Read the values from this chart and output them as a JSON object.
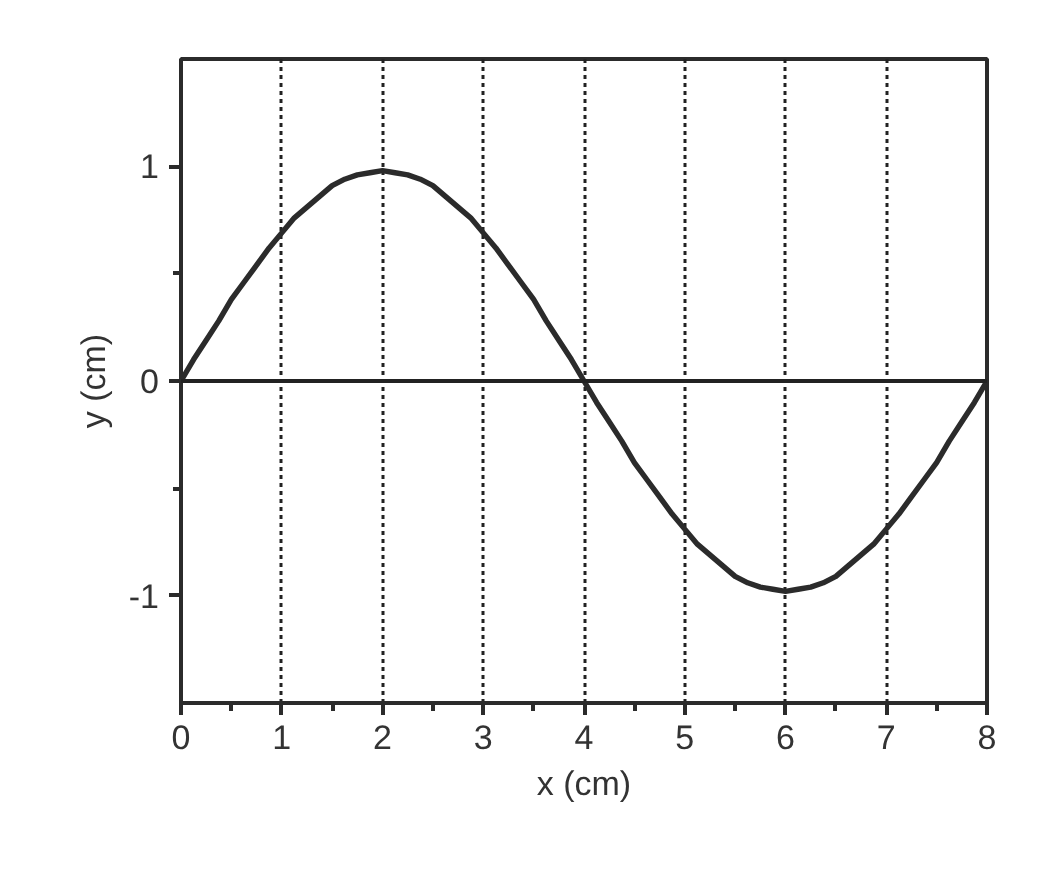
{
  "chart_data": {
    "type": "line",
    "xlabel": "x (cm)",
    "ylabel": "y (cm)",
    "x": [
      0,
      0.125,
      0.25,
      0.375,
      0.5,
      0.625,
      0.75,
      0.875,
      1,
      1.125,
      1.25,
      1.375,
      1.5,
      1.625,
      1.75,
      1.875,
      2,
      2.125,
      2.25,
      2.375,
      2.5,
      2.625,
      2.75,
      2.875,
      3,
      3.125,
      3.25,
      3.375,
      3.5,
      3.625,
      3.75,
      3.875,
      4,
      4.125,
      4.25,
      4.375,
      4.5,
      4.625,
      4.75,
      4.875,
      5,
      5.125,
      5.25,
      5.375,
      5.5,
      5.625,
      5.75,
      5.875,
      6,
      6.125,
      6.25,
      6.375,
      6.5,
      6.625,
      6.75,
      6.875,
      7,
      7.125,
      7.25,
      7.375,
      7.5,
      7.625,
      7.75,
      7.875,
      8
    ],
    "series": [
      {
        "color": "#2b2b2b",
        "values": [
          0,
          0.1,
          0.19,
          0.28,
          0.38,
          0.46,
          0.54,
          0.62,
          0.69,
          0.76,
          0.81,
          0.86,
          0.91,
          0.94,
          0.96,
          0.97,
          0.98,
          0.97,
          0.96,
          0.94,
          0.91,
          0.86,
          0.81,
          0.76,
          0.69,
          0.62,
          0.54,
          0.46,
          0.38,
          0.28,
          0.19,
          0.1,
          0,
          -0.1,
          -0.19,
          -0.28,
          -0.38,
          -0.46,
          -0.54,
          -0.62,
          -0.69,
          -0.76,
          -0.81,
          -0.86,
          -0.91,
          -0.94,
          -0.96,
          -0.97,
          -0.98,
          -0.97,
          -0.96,
          -0.94,
          -0.91,
          -0.86,
          -0.81,
          -0.76,
          -0.69,
          -0.62,
          -0.54,
          -0.46,
          -0.38,
          -0.28,
          -0.19,
          -0.1,
          0
        ]
      }
    ],
    "xlim": [
      0,
      8
    ],
    "ylim": [
      -1.5,
      1.5
    ],
    "xticks": [
      0,
      {
        "value": 0.5,
        "label": null
      },
      1,
      {
        "value": 1.5,
        "label": null
      },
      2,
      {
        "value": 2.5,
        "label": null
      },
      3,
      {
        "value": 3.5,
        "label": null
      },
      4,
      {
        "value": 4.5,
        "label": null
      },
      5,
      {
        "value": 5.5,
        "label": null
      },
      6,
      {
        "value": 6.5,
        "label": null
      },
      7,
      {
        "value": 7.5,
        "label": null
      },
      8
    ],
    "yticks": [
      -1,
      {
        "value": -0.5,
        "label": null
      },
      0,
      {
        "value": 0.5,
        "label": null
      },
      1
    ],
    "ref_lines": [
      {
        "axis": "y",
        "value": 0,
        "color": "#222222",
        "line_style": "solid"
      }
    ],
    "grid": "x",
    "line_style": "solid",
    "marker": "none"
  }
}
